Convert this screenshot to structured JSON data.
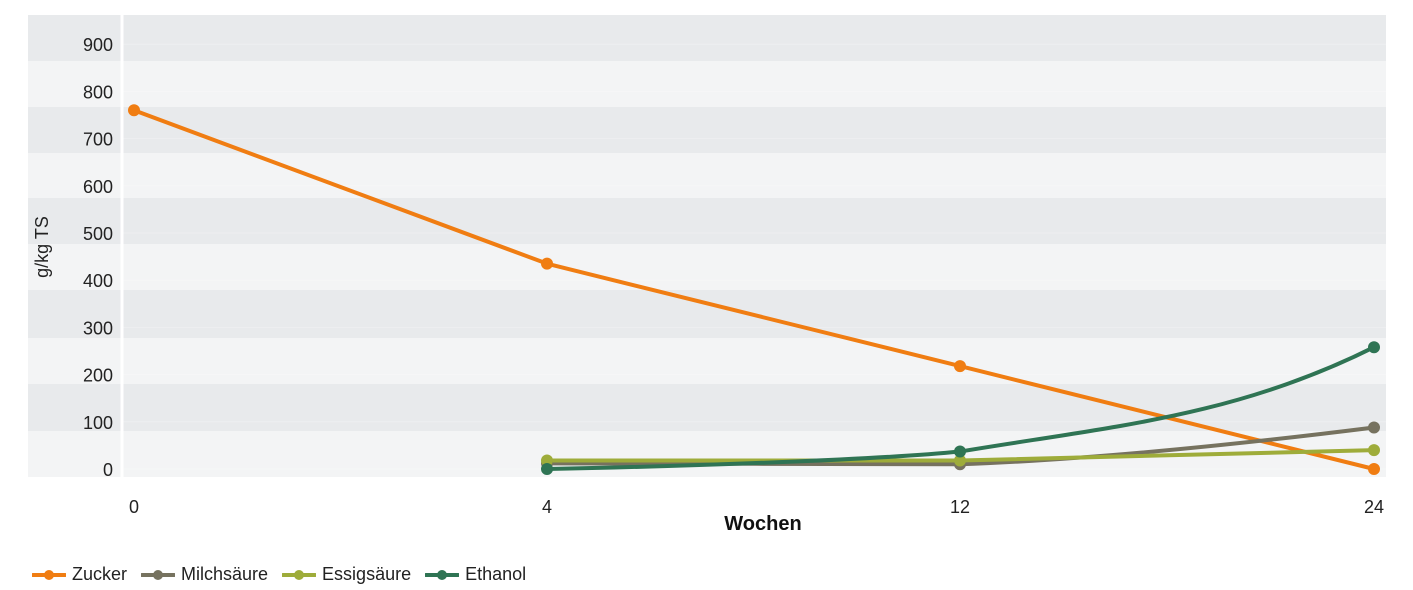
{
  "chart_data": {
    "type": "line",
    "x": [
      "0",
      "4",
      "12",
      "24"
    ],
    "xlabel": "Wochen",
    "ylabel": "g/kg TS",
    "ylim": [
      0,
      900
    ],
    "yticks": [
      "0",
      "100",
      "200",
      "300",
      "400",
      "500",
      "600",
      "700",
      "800",
      "900"
    ],
    "grid": "horizontal bands",
    "legend_position": "bottom-left",
    "series": [
      {
        "name": "Zucker",
        "color": "#f07d12",
        "values": [
          760,
          435,
          218,
          0
        ]
      },
      {
        "name": "Milchsäure",
        "color": "#76725f",
        "values": [
          null,
          12,
          10,
          88
        ]
      },
      {
        "name": "Essigsäure",
        "color": "#9eac3a",
        "values": [
          null,
          18,
          18,
          40
        ]
      },
      {
        "name": "Ethanol",
        "color": "#2f7454",
        "values": [
          null,
          0,
          37,
          258
        ]
      }
    ]
  },
  "legend": {
    "items": [
      {
        "label": "Zucker",
        "color": "#f07d12"
      },
      {
        "label": "Milchsäure",
        "color": "#76725f"
      },
      {
        "label": "Essigsäure",
        "color": "#9eac3a"
      },
      {
        "label": "Ethanol",
        "color": "#2f7454"
      }
    ]
  }
}
